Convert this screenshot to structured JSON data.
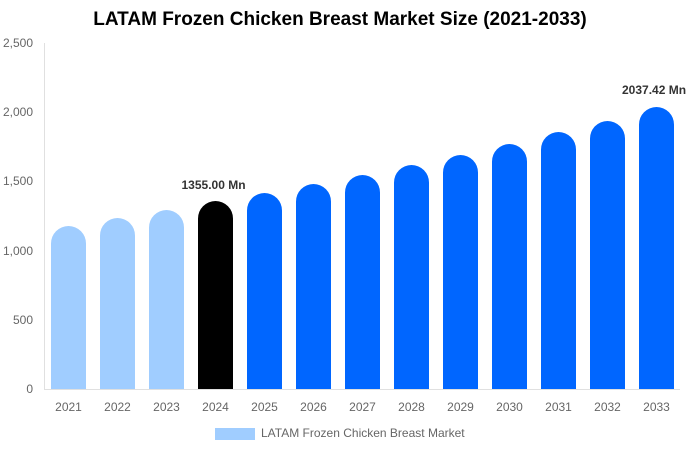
{
  "chart_data": {
    "type": "bar",
    "title": "LATAM Frozen Chicken Breast Market Size (2021-2033)",
    "xlabel": "",
    "ylabel": "",
    "categories": [
      "2021",
      "2022",
      "2023",
      "2024",
      "2025",
      "2026",
      "2027",
      "2028",
      "2029",
      "2030",
      "2031",
      "2032",
      "2033"
    ],
    "series": [
      {
        "name": "LATAM Frozen Chicken Breast Market",
        "values": [
          1178,
          1235,
          1293,
          1355.0,
          1416,
          1481,
          1546,
          1618,
          1691,
          1770,
          1857,
          1936,
          2037.42
        ]
      }
    ],
    "ylim": [
      0,
      2500
    ],
    "yticks": [
      "0",
      "500",
      "1,000",
      "1,500",
      "2,000",
      "2,500"
    ],
    "grid": false,
    "legend_position": "bottom",
    "annotations": [
      {
        "category": "2024",
        "text": "1355.00 Mn"
      },
      {
        "category": "2033",
        "text": "2037.42 Mn"
      }
    ],
    "colors": {
      "historical": "#a0cdff",
      "base_year": "#000000",
      "forecast": "#0066ff",
      "legend": "#a0cdff"
    }
  }
}
